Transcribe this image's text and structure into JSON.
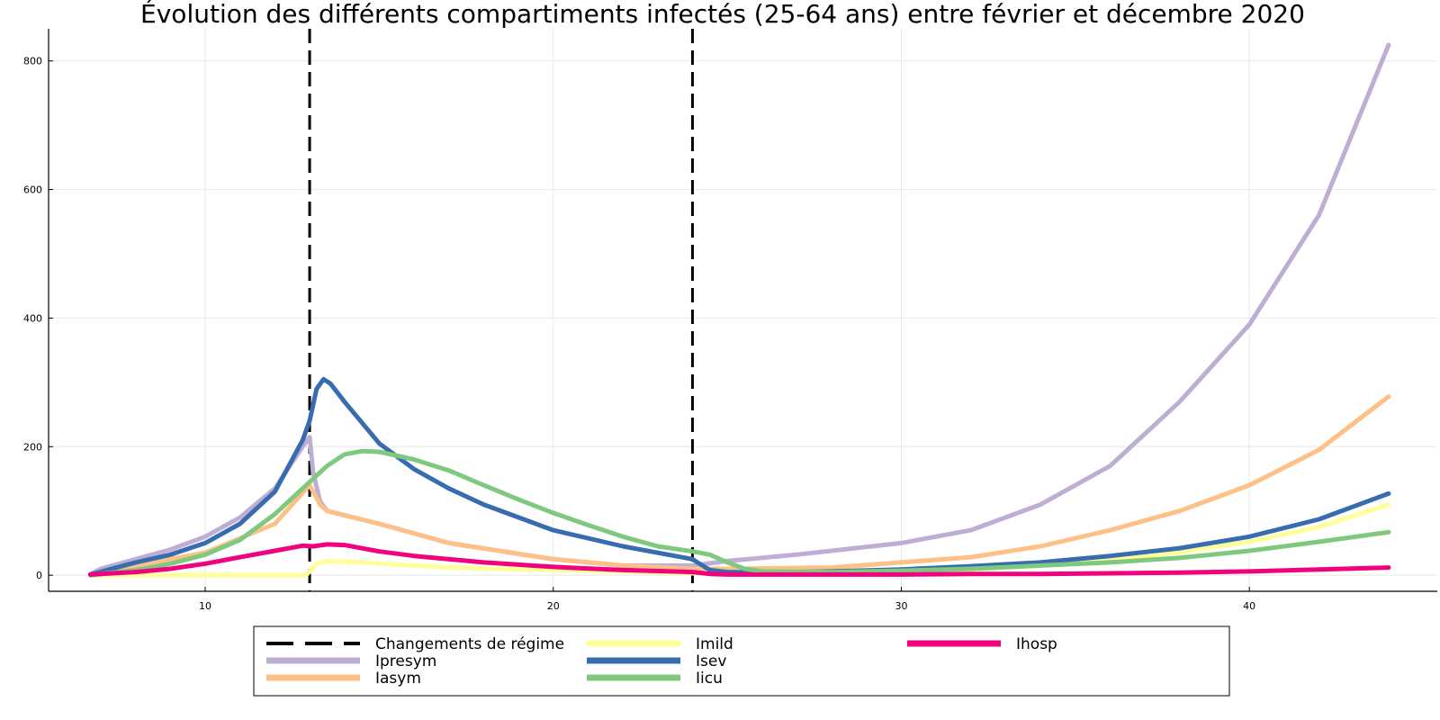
{
  "chart_data": {
    "type": "line",
    "title": "Évolution des différents compartiments infectés (25-64 ans) entre février et décembre 2020",
    "xlabel": "",
    "ylabel": "",
    "xlim": [
      5.5,
      45.4
    ],
    "ylim": [
      -25,
      850
    ],
    "xticks": [
      10,
      20,
      30,
      40
    ],
    "yticks": [
      0,
      200,
      400,
      600,
      800
    ],
    "grid": true,
    "legend_position": "bottom",
    "regime_changes": {
      "name": "Changements de régime",
      "x": [
        13,
        24
      ],
      "color": "#000000",
      "style": "dashed"
    },
    "series": [
      {
        "name": "Ipresym",
        "color": "#BEAED4",
        "points": [
          [
            6.7,
            2
          ],
          [
            7,
            10
          ],
          [
            8,
            25
          ],
          [
            9,
            40
          ],
          [
            10,
            60
          ],
          [
            11,
            90
          ],
          [
            12,
            135
          ],
          [
            12.8,
            200
          ],
          [
            13,
            215
          ],
          [
            13.1,
            160
          ],
          [
            13.3,
            115
          ],
          [
            13.5,
            100
          ],
          [
            15,
            80
          ],
          [
            17,
            50
          ],
          [
            20,
            25
          ],
          [
            22,
            15
          ],
          [
            24,
            15
          ],
          [
            25,
            22
          ],
          [
            27,
            32
          ],
          [
            30,
            50
          ],
          [
            32,
            70
          ],
          [
            34,
            110
          ],
          [
            36,
            170
          ],
          [
            38,
            270
          ],
          [
            40,
            390
          ],
          [
            42,
            560
          ],
          [
            44,
            825
          ]
        ]
      },
      {
        "name": "Iasym",
        "color": "#FDC086",
        "points": [
          [
            6.7,
            1
          ],
          [
            8,
            15
          ],
          [
            10,
            35
          ],
          [
            12,
            80
          ],
          [
            13,
            140
          ],
          [
            13.3,
            110
          ],
          [
            13.5,
            100
          ],
          [
            15,
            80
          ],
          [
            17,
            50
          ],
          [
            20,
            25
          ],
          [
            22,
            15
          ],
          [
            24,
            10
          ],
          [
            25,
            10
          ],
          [
            28,
            12
          ],
          [
            30,
            20
          ],
          [
            32,
            28
          ],
          [
            34,
            45
          ],
          [
            36,
            70
          ],
          [
            38,
            100
          ],
          [
            40,
            140
          ],
          [
            42,
            195
          ],
          [
            44,
            278
          ]
        ]
      },
      {
        "name": "Imild",
        "color": "#FFFF99",
        "points": [
          [
            6.7,
            0
          ],
          [
            10,
            0
          ],
          [
            12.9,
            0
          ],
          [
            13.2,
            18
          ],
          [
            13.5,
            22
          ],
          [
            14.5,
            20
          ],
          [
            17,
            12
          ],
          [
            20,
            8
          ],
          [
            24,
            3
          ],
          [
            25,
            2
          ],
          [
            28,
            2
          ],
          [
            30,
            5
          ],
          [
            32,
            9
          ],
          [
            34,
            15
          ],
          [
            36,
            24
          ],
          [
            38,
            36
          ],
          [
            40,
            52
          ],
          [
            42,
            75
          ],
          [
            44,
            110
          ]
        ]
      },
      {
        "name": "Isev",
        "color": "#386CB0",
        "points": [
          [
            6.7,
            1
          ],
          [
            8,
            20
          ],
          [
            9,
            32
          ],
          [
            10,
            50
          ],
          [
            11,
            80
          ],
          [
            12,
            130
          ],
          [
            12.8,
            210
          ],
          [
            13,
            240
          ],
          [
            13.2,
            290
          ],
          [
            13.4,
            305
          ],
          [
            13.6,
            298
          ],
          [
            14,
            270
          ],
          [
            15,
            205
          ],
          [
            16,
            165
          ],
          [
            17,
            135
          ],
          [
            18,
            110
          ],
          [
            19,
            90
          ],
          [
            20,
            70
          ],
          [
            22,
            45
          ],
          [
            24,
            25
          ],
          [
            24.2,
            18
          ],
          [
            24.5,
            8
          ],
          [
            25,
            5
          ],
          [
            26,
            4
          ],
          [
            28,
            6
          ],
          [
            30,
            9
          ],
          [
            32,
            14
          ],
          [
            34,
            20
          ],
          [
            36,
            30
          ],
          [
            38,
            42
          ],
          [
            40,
            60
          ],
          [
            42,
            87
          ],
          [
            44,
            127
          ]
        ]
      },
      {
        "name": "Iicu",
        "color": "#7FC97F",
        "points": [
          [
            6.7,
            0
          ],
          [
            8,
            8
          ],
          [
            9,
            18
          ],
          [
            10,
            32
          ],
          [
            11,
            55
          ],
          [
            12,
            95
          ],
          [
            13,
            145
          ],
          [
            13.5,
            170
          ],
          [
            14,
            188
          ],
          [
            14.5,
            193
          ],
          [
            15,
            192
          ],
          [
            16,
            180
          ],
          [
            17,
            163
          ],
          [
            18,
            140
          ],
          [
            19,
            118
          ],
          [
            20,
            97
          ],
          [
            21,
            78
          ],
          [
            22,
            60
          ],
          [
            23,
            45
          ],
          [
            24,
            37
          ],
          [
            24.5,
            32
          ],
          [
            25,
            20
          ],
          [
            25.5,
            10
          ],
          [
            26,
            6
          ],
          [
            28,
            5
          ],
          [
            30,
            7
          ],
          [
            32,
            10
          ],
          [
            34,
            15
          ],
          [
            36,
            20
          ],
          [
            38,
            27
          ],
          [
            40,
            38
          ],
          [
            42,
            52
          ],
          [
            44,
            67
          ]
        ]
      },
      {
        "name": "Ihosp",
        "color": "#F0027F",
        "points": [
          [
            6.7,
            1
          ],
          [
            8,
            5
          ],
          [
            9,
            10
          ],
          [
            10,
            18
          ],
          [
            11,
            28
          ],
          [
            12,
            38
          ],
          [
            12.8,
            46
          ],
          [
            13.1,
            45
          ],
          [
            13.5,
            48
          ],
          [
            14,
            47
          ],
          [
            15,
            37
          ],
          [
            16,
            30
          ],
          [
            18,
            20
          ],
          [
            20,
            13
          ],
          [
            22,
            8
          ],
          [
            24,
            5
          ],
          [
            24.5,
            2
          ],
          [
            25,
            1
          ],
          [
            28,
            1
          ],
          [
            30,
            1
          ],
          [
            32,
            2
          ],
          [
            34,
            2
          ],
          [
            36,
            3
          ],
          [
            38,
            4
          ],
          [
            40,
            6
          ],
          [
            42,
            9
          ],
          [
            44,
            12
          ]
        ]
      }
    ]
  }
}
